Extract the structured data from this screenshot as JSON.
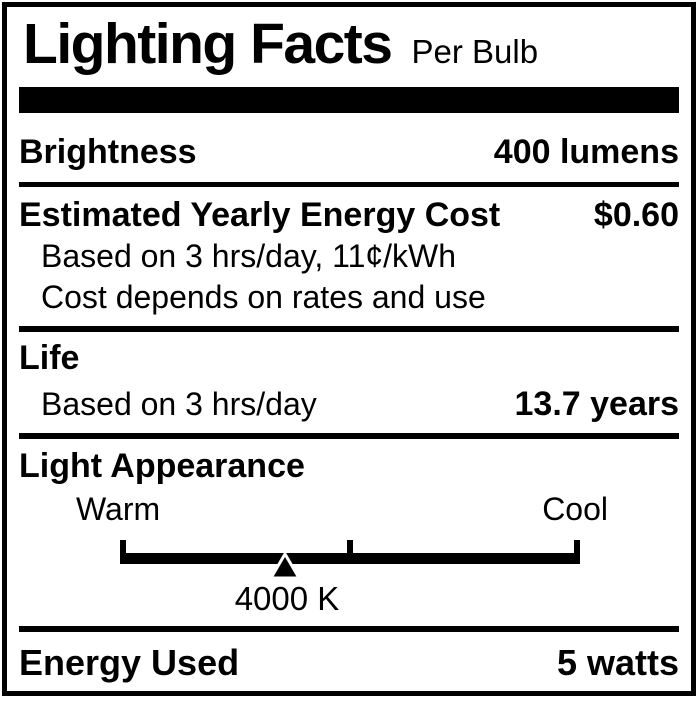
{
  "header": {
    "title": "Lighting Facts",
    "subtitle": "Per Bulb"
  },
  "brightness": {
    "label": "Brightness",
    "value": "400 lumens"
  },
  "energy_cost": {
    "label": "Estimated Yearly Energy Cost",
    "value": "$0.60",
    "notes": [
      "Based on 3 hrs/day, 11¢/kWh",
      "Cost depends on rates and use"
    ]
  },
  "life": {
    "label": "Life",
    "note": "Based on 3 hrs/day",
    "value": "13.7 years"
  },
  "light_appearance": {
    "label": "Light Appearance",
    "warm_label": "Warm",
    "cool_label": "Cool",
    "kelvin": "4000 K",
    "pointer_percent": 35.8
  },
  "energy_used": {
    "label": "Energy Used",
    "value": "5 watts"
  },
  "colors": {
    "ink": "#000000",
    "background": "#ffffff"
  }
}
